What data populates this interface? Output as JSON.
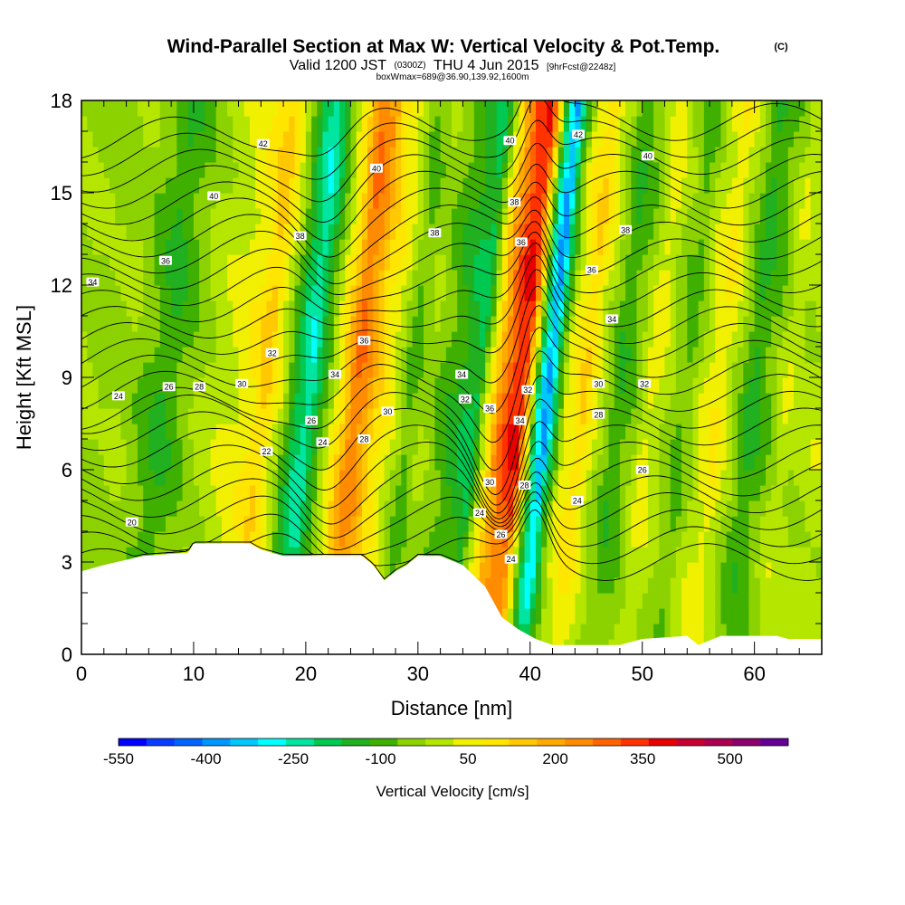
{
  "title": {
    "main": "Wind-Parallel Section at Max W: Vertical Velocity & Pot.Temp.",
    "copyright": "(C)",
    "valid_prefix": "Valid 1200 JST",
    "valid_utc": "(0300Z)",
    "valid_suffix": "THU 4 Jun 2015",
    "forecast": "[9hrFcst@2248z]",
    "box_info": "boxWmax=689@36.90,139.92,1600m"
  },
  "chart_data": {
    "type": "heatmap",
    "xlabel": "Distance [nm]",
    "ylabel": "Height [Kft MSL]",
    "xlim": [
      0,
      66
    ],
    "ylim": [
      0,
      18
    ],
    "x_ticks": [
      0,
      10,
      20,
      30,
      40,
      50,
      60
    ],
    "y_ticks": [
      0,
      3,
      6,
      9,
      12,
      15,
      18
    ],
    "colorbar": {
      "title": "Vertical Velocity [cm/s]",
      "levels": [
        -550,
        -500,
        -450,
        -400,
        -350,
        -300,
        -250,
        -200,
        -150,
        -100,
        -50,
        0,
        50,
        100,
        150,
        200,
        250,
        300,
        350,
        400,
        450,
        500,
        550,
        600
      ],
      "tick_labels": [
        "-550",
        "-400",
        "-250",
        "-100",
        "50",
        "200",
        "350",
        "500"
      ],
      "tick_values": [
        -550,
        -400,
        -250,
        -100,
        50,
        200,
        350,
        500
      ],
      "colors": [
        "#0000ff",
        "#0a3cff",
        "#0064ff",
        "#0096ff",
        "#00c8ff",
        "#00ffff",
        "#00e6a0",
        "#00c850",
        "#20b020",
        "#40b000",
        "#8cd200",
        "#b4e600",
        "#f0f000",
        "#ffe600",
        "#ffc800",
        "#ffaa00",
        "#ff8c00",
        "#ff6400",
        "#ff3200",
        "#e60000",
        "#c80032",
        "#aa0050",
        "#8c006e",
        "#640096"
      ]
    },
    "velocity_columns": [
      {
        "x": 0,
        "w": 0
      },
      {
        "x": 2,
        "w": -20
      },
      {
        "x": 4,
        "w": 0
      },
      {
        "x": 6,
        "w": -60
      },
      {
        "x": 7.5,
        "w": -110
      },
      {
        "x": 9,
        "w": -60
      },
      {
        "x": 11,
        "w": 10
      },
      {
        "x": 13,
        "w": 40
      },
      {
        "x": 15,
        "w": 90
      },
      {
        "x": 16.5,
        "w": 170
      },
      {
        "x": 18,
        "w": 30
      },
      {
        "x": 19.5,
        "w": -180
      },
      {
        "x": 20.5,
        "w": -250
      },
      {
        "x": 22,
        "w": -40
      },
      {
        "x": 23.5,
        "w": 150
      },
      {
        "x": 24.5,
        "w": 300
      },
      {
        "x": 25.5,
        "w": 260
      },
      {
        "x": 26.5,
        "w": 150
      },
      {
        "x": 28,
        "w": 60
      },
      {
        "x": 29.5,
        "w": -70
      },
      {
        "x": 31,
        "w": 0
      },
      {
        "x": 32.5,
        "w": -60
      },
      {
        "x": 34,
        "w": -120
      },
      {
        "x": 35.5,
        "w": -170
      },
      {
        "x": 36.5,
        "w": 60
      },
      {
        "x": 37.5,
        "w": 250
      },
      {
        "x": 38.5,
        "w": 370
      },
      {
        "x": 39.5,
        "w": 400
      },
      {
        "x": 40.2,
        "w": 150
      },
      {
        "x": 41,
        "w": -220
      },
      {
        "x": 41.8,
        "w": -380
      },
      {
        "x": 42.5,
        "w": -150
      },
      {
        "x": 43.5,
        "w": 60
      },
      {
        "x": 45,
        "w": 150
      },
      {
        "x": 46.5,
        "w": 20
      },
      {
        "x": 48,
        "w": -100
      },
      {
        "x": 49.5,
        "w": -40
      },
      {
        "x": 51,
        "w": 80
      },
      {
        "x": 52.5,
        "w": 0
      },
      {
        "x": 54,
        "w": -70
      },
      {
        "x": 55.5,
        "w": 40
      },
      {
        "x": 57,
        "w": 100
      },
      {
        "x": 58.5,
        "w": 0
      },
      {
        "x": 60,
        "w": -120
      },
      {
        "x": 61.5,
        "w": -50
      },
      {
        "x": 63,
        "w": 40
      },
      {
        "x": 64.5,
        "w": 10
      },
      {
        "x": 66,
        "w": 30
      }
    ],
    "terrain": [
      {
        "x": 0,
        "h": 2.7
      },
      {
        "x": 2,
        "h": 2.9
      },
      {
        "x": 5.5,
        "h": 3.2
      },
      {
        "x": 9.5,
        "h": 3.3
      },
      {
        "x": 10,
        "h": 3.6
      },
      {
        "x": 15,
        "h": 3.6
      },
      {
        "x": 16,
        "h": 3.4
      },
      {
        "x": 18,
        "h": 3.2
      },
      {
        "x": 25,
        "h": 3.2
      },
      {
        "x": 26,
        "h": 2.9
      },
      {
        "x": 27,
        "h": 2.4
      },
      {
        "x": 28,
        "h": 2.7
      },
      {
        "x": 29,
        "h": 2.9
      },
      {
        "x": 30,
        "h": 3.2
      },
      {
        "x": 32,
        "h": 3.2
      },
      {
        "x": 34,
        "h": 2.9
      },
      {
        "x": 36,
        "h": 2.2
      },
      {
        "x": 37.5,
        "h": 1.2
      },
      {
        "x": 39,
        "h": 0.8
      },
      {
        "x": 40.5,
        "h": 0.5
      },
      {
        "x": 42,
        "h": 0.3
      },
      {
        "x": 48,
        "h": 0.3
      },
      {
        "x": 50,
        "h": 0.5
      },
      {
        "x": 54,
        "h": 0.6
      },
      {
        "x": 55,
        "h": 0.3
      },
      {
        "x": 57,
        "h": 0.6
      },
      {
        "x": 62,
        "h": 0.6
      },
      {
        "x": 63,
        "h": 0.5
      },
      {
        "x": 66,
        "h": 0.5
      }
    ],
    "theta_contours": [
      {
        "value": 20,
        "label": "20",
        "label_at": [
          4.5,
          4.3
        ]
      },
      {
        "value": 22,
        "label": "22",
        "label_at": [
          16.5,
          6.6
        ]
      },
      {
        "value": 24,
        "label": "24",
        "label_at": [
          3.3,
          8.4
        ]
      },
      {
        "value": 26,
        "label": "26",
        "label_at": [
          7.8,
          8.7
        ]
      },
      {
        "value": 28,
        "label": "28",
        "label_at": [
          10.5,
          8.7
        ]
      },
      {
        "value": 30,
        "label": "30",
        "label_at": [
          14.3,
          8.8
        ]
      },
      {
        "value": 32,
        "label": "32",
        "label_at": [
          17,
          9.8
        ]
      },
      {
        "value": 34,
        "label": "34",
        "label_at": [
          1,
          12.1
        ]
      },
      {
        "value": 36,
        "label": "36",
        "label_at": [
          7.5,
          12.8
        ]
      },
      {
        "value": 38,
        "label": "38",
        "label_at": [
          19.5,
          13.6
        ]
      },
      {
        "value": 40,
        "label": "40",
        "label_at": [
          11.8,
          14.9
        ]
      },
      {
        "value": 42,
        "label": "42",
        "label_at": [
          16.2,
          16.6
        ]
      }
    ],
    "extra_contour_labels": [
      {
        "label": "24",
        "at": [
          35.5,
          4.6
        ]
      },
      {
        "label": "26",
        "at": [
          37.4,
          3.9
        ]
      },
      {
        "label": "24",
        "at": [
          38.3,
          3.1
        ]
      },
      {
        "label": "28",
        "at": [
          39.5,
          5.5
        ]
      },
      {
        "label": "30",
        "at": [
          36.4,
          5.6
        ]
      },
      {
        "label": "32",
        "at": [
          34.2,
          8.3
        ]
      },
      {
        "label": "34",
        "at": [
          33.9,
          9.1
        ]
      },
      {
        "label": "36",
        "at": [
          36.4,
          8.0
        ]
      },
      {
        "label": "34",
        "at": [
          39.1,
          7.6
        ]
      },
      {
        "label": "32",
        "at": [
          39.8,
          8.6
        ]
      },
      {
        "label": "36",
        "at": [
          39.2,
          13.4
        ]
      },
      {
        "label": "38",
        "at": [
          38.6,
          14.7
        ]
      },
      {
        "label": "40",
        "at": [
          38.2,
          16.7
        ]
      },
      {
        "label": "38",
        "at": [
          31.5,
          13.7
        ]
      },
      {
        "label": "40",
        "at": [
          26.3,
          15.8
        ]
      },
      {
        "label": "36",
        "at": [
          25.2,
          10.2
        ]
      },
      {
        "label": "34",
        "at": [
          22.6,
          9.1
        ]
      },
      {
        "label": "30",
        "at": [
          27.3,
          7.9
        ]
      },
      {
        "label": "26",
        "at": [
          20.5,
          7.6
        ]
      },
      {
        "label": "24",
        "at": [
          21.5,
          6.9
        ]
      },
      {
        "label": "28",
        "at": [
          25.2,
          7.0
        ]
      },
      {
        "label": "42",
        "at": [
          44.3,
          16.9
        ]
      },
      {
        "label": "40",
        "at": [
          50.5,
          16.2
        ]
      },
      {
        "label": "38",
        "at": [
          48.5,
          13.8
        ]
      },
      {
        "label": "36",
        "at": [
          45.5,
          12.5
        ]
      },
      {
        "label": "34",
        "at": [
          47.3,
          10.9
        ]
      },
      {
        "label": "30",
        "at": [
          46.1,
          8.8
        ]
      },
      {
        "label": "32",
        "at": [
          50.2,
          8.8
        ]
      },
      {
        "label": "28",
        "at": [
          46.1,
          7.8
        ]
      },
      {
        "label": "26",
        "at": [
          50.0,
          6.0
        ]
      },
      {
        "label": "24",
        "at": [
          44.2,
          5.0
        ]
      }
    ]
  }
}
